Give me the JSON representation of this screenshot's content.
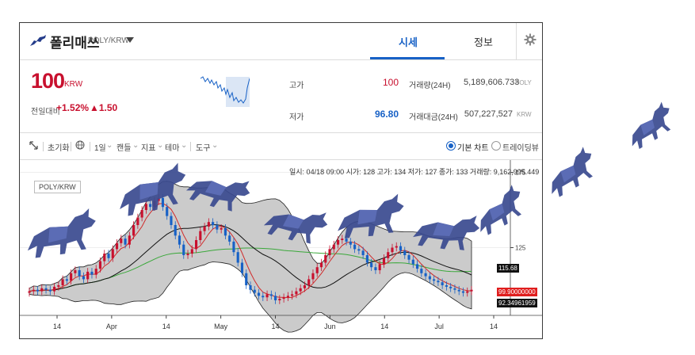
{
  "header": {
    "coin_name": "폴리매쓰",
    "pair": "POLY/KRW",
    "tabs": [
      "시세",
      "정보"
    ],
    "active_tab": "시세"
  },
  "price": {
    "value": "100",
    "unit": "KRW",
    "change_label": "전일대비",
    "change_pct": "+1.52%",
    "change_abs": "▲1.50"
  },
  "stats": {
    "high_label": "고가",
    "high": "100",
    "low_label": "저가",
    "low": "96.80",
    "volume_label": "거래량(24H)",
    "volume": "5,189,606.733",
    "volume_unit": "POLY",
    "amount_label": "거래대금(24H)",
    "amount": "507,227,527",
    "amount_unit": "KRW"
  },
  "toolbar": {
    "reset": "초기화",
    "interval": "1일",
    "candle": "캔들",
    "indicator": "지표",
    "theme": "테마",
    "tools": "도구",
    "basic_chart": "기본 차트",
    "tradingview": "트레이딩뷰"
  },
  "chart": {
    "ohlc_text": "일시: 04/18 09:00 시가: 128 고가: 134 저가: 127 종가: 133 거래량: 9,162,995.449",
    "symbol": "POLY/KRW",
    "price_tags": [
      "115.68",
      "99.90000000",
      "92.34961959"
    ],
    "y_ticks": [
      "175",
      "125"
    ],
    "x_ticks": [
      "14",
      "Apr",
      "14",
      "May",
      "14",
      "Jun",
      "14",
      "Jul",
      "14"
    ]
  },
  "colors": {
    "up": "#c8102e",
    "down": "#1761c6",
    "band": "#c8c8c8",
    "bull": "#3a4a8f"
  },
  "icons": [
    "bull-icon",
    "dropdown-icon",
    "gear-icon",
    "expand-icon",
    "globe-icon",
    "radio-icon"
  ],
  "chart_data": {
    "type": "candlestick",
    "y_ticks": [
      175,
      125
    ],
    "x_ticks": [
      "14",
      "Apr",
      "14",
      "May",
      "14",
      "Jun",
      "14",
      "Jul",
      "14"
    ],
    "closes": [
      96,
      97,
      96,
      98,
      97,
      96,
      99,
      100,
      104,
      103,
      108,
      110,
      106,
      104,
      109,
      107,
      111,
      116,
      121,
      118,
      124,
      128,
      131,
      127,
      133,
      140,
      145,
      150,
      154,
      152,
      156,
      158,
      152,
      146,
      140,
      133,
      127,
      120,
      121,
      124,
      130,
      136,
      139,
      142,
      140,
      137,
      138,
      133,
      129,
      122,
      115,
      108,
      100,
      97,
      95,
      93,
      92,
      94,
      93,
      90,
      91,
      92,
      93,
      94,
      96,
      98,
      100,
      104,
      108,
      112,
      115,
      120,
      124,
      127,
      130,
      131,
      129,
      127,
      124,
      123,
      120,
      115,
      112,
      110,
      114,
      118,
      122,
      125,
      126,
      123,
      120,
      117,
      114,
      111,
      108,
      106,
      104,
      103,
      102,
      100,
      99,
      98,
      97,
      96,
      95,
      96,
      97
    ]
  }
}
